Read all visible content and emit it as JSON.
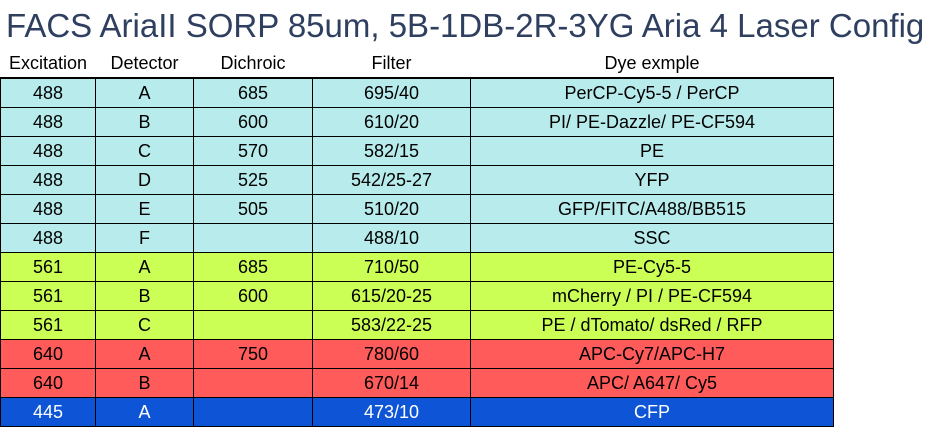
{
  "title": "FACS AriaII SORP 85um, 5B-1DB-2R-3YG Aria 4 Laser Config",
  "columns": [
    "Excitation",
    "Detector",
    "Dichroic",
    "Filter",
    "Dye exmple"
  ],
  "colors": {
    "blue": "#b8ecec",
    "green": "#ccff55",
    "red": "#ff5b5b",
    "violet": "#0d55d6"
  },
  "rows": [
    {
      "excitation": "488",
      "detector": "A",
      "dichroic": "685",
      "filter": "695/40",
      "dye": "PerCP-Cy5-5 / PerCP",
      "color": "blue"
    },
    {
      "excitation": "488",
      "detector": "B",
      "dichroic": "600",
      "filter": "610/20",
      "dye": "PI/ PE-Dazzle/ PE-CF594",
      "color": "blue"
    },
    {
      "excitation": "488",
      "detector": "C",
      "dichroic": "570",
      "filter": "582/15",
      "dye": "PE",
      "color": "blue"
    },
    {
      "excitation": "488",
      "detector": "D",
      "dichroic": "525",
      "filter": "542/25-27",
      "dye": "YFP",
      "color": "blue"
    },
    {
      "excitation": "488",
      "detector": "E",
      "dichroic": "505",
      "filter": "510/20",
      "dye": "GFP/FITC/A488/BB515",
      "color": "blue"
    },
    {
      "excitation": "488",
      "detector": "F",
      "dichroic": "",
      "filter": "488/10",
      "dye": "SSC",
      "color": "blue"
    },
    {
      "excitation": "561",
      "detector": "A",
      "dichroic": "685",
      "filter": "710/50",
      "dye": "PE-Cy5-5",
      "color": "green"
    },
    {
      "excitation": "561",
      "detector": "B",
      "dichroic": "600",
      "filter": "615/20-25",
      "dye": "mCherry / PI / PE-CF594",
      "color": "green"
    },
    {
      "excitation": "561",
      "detector": "C",
      "dichroic": "",
      "filter": "583/22-25",
      "dye": "PE / dTomato/ dsRed / RFP",
      "color": "green"
    },
    {
      "excitation": "640",
      "detector": "A",
      "dichroic": "750",
      "filter": "780/60",
      "dye": "APC-Cy7/APC-H7",
      "color": "red"
    },
    {
      "excitation": "640",
      "detector": "B",
      "dichroic": "",
      "filter": "670/14",
      "dye": "APC/ A647/ Cy5",
      "color": "red"
    },
    {
      "excitation": "445",
      "detector": "A",
      "dichroic": "",
      "filter": "473/10",
      "dye": "CFP",
      "color": "violet"
    }
  ]
}
